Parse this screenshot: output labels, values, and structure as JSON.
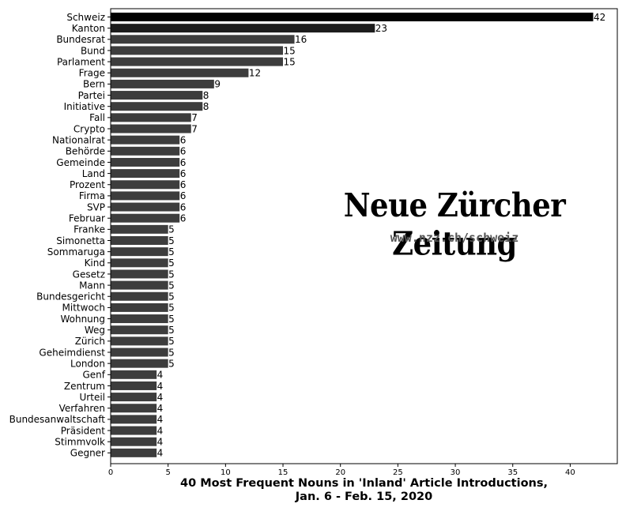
{
  "chart_data": {
    "type": "bar",
    "orientation": "horizontal",
    "title": "40 Most Frequent Nouns in 'Inland' Article Introductions,",
    "subtitle": "Jan. 6 - Feb. 15, 2020",
    "xlim": [
      0,
      44.1
    ],
    "x_ticks": [
      "0",
      "5",
      "10",
      "15",
      "20",
      "25",
      "30",
      "35",
      "40"
    ],
    "grid": false,
    "categories": [
      "Schweiz",
      "Kanton",
      "Bundesrat",
      "Bund",
      "Parlament",
      "Frage",
      "Bern",
      "Partei",
      "Initiative",
      "Fall",
      "Crypto",
      "Nationalrat",
      "Behörde",
      "Gemeinde",
      "Land",
      "Prozent",
      "Firma",
      "SVP",
      "Februar",
      "Franke",
      "Simonetta",
      "Sommaruga",
      "Kind",
      "Gesetz",
      "Mann",
      "Bundesgericht",
      "Mittwoch",
      "Wohnung",
      "Weg",
      "Zürich",
      "Geheimdienst",
      "London",
      "Genf",
      "Zentrum",
      "Urteil",
      "Verfahren",
      "Bundesanwaltschaft",
      "Präsident",
      "Stimmvolk",
      "Gegner"
    ],
    "values": [
      42,
      23,
      16,
      15,
      15,
      12,
      9,
      8,
      8,
      7,
      7,
      6,
      6,
      6,
      6,
      6,
      6,
      6,
      6,
      5,
      5,
      5,
      5,
      5,
      5,
      5,
      5,
      5,
      5,
      5,
      5,
      5,
      4,
      4,
      4,
      4,
      4,
      4,
      4,
      4
    ],
    "data_labels": [
      "42",
      "23",
      "16",
      "15",
      "15",
      "12",
      "9",
      "8",
      "8",
      "7",
      "7",
      "6",
      "6",
      "6",
      "6",
      "6",
      "6",
      "6",
      "6",
      "5",
      "5",
      "5",
      "5",
      "5",
      "5",
      "5",
      "5",
      "5",
      "5",
      "5",
      "5",
      "5",
      "4",
      "4",
      "4",
      "4",
      "4",
      "4",
      "4",
      "4"
    ],
    "colors": {
      "top_bar": "#000000",
      "second_bar": "#1c1c1c",
      "bar": "#3d3d3d",
      "axis": "#000000"
    }
  },
  "watermark": {
    "name": "Neue Zürcher Zeitung",
    "url": "www.nzz.ch/schweiz"
  }
}
